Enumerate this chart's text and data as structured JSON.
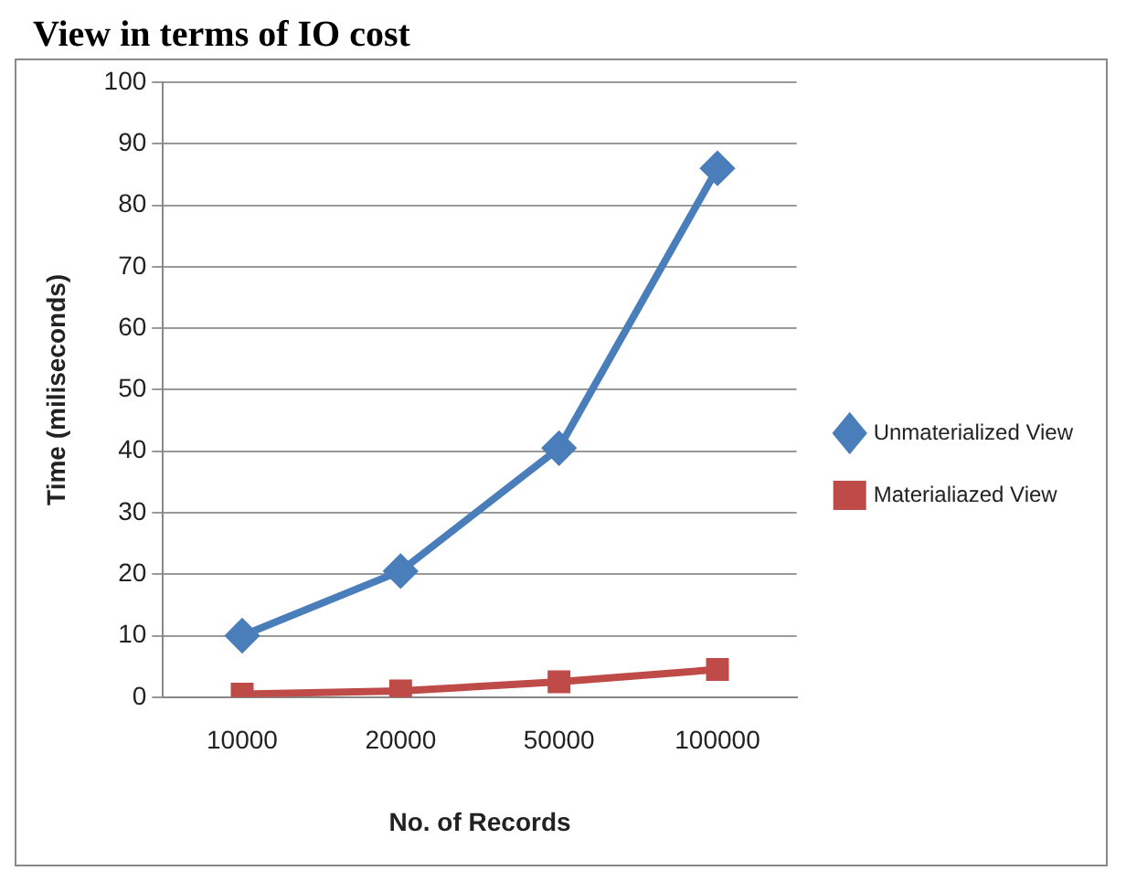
{
  "chart_data": {
    "type": "line",
    "title": "View in terms of IO cost",
    "xlabel": "No. of Records",
    "ylabel": "Time (miliseconds)",
    "categories": [
      "10000",
      "20000",
      "50000",
      "100000"
    ],
    "series": [
      {
        "name": "Unmaterialized View",
        "color": "#4a7ebb",
        "marker": "diamond",
        "values": [
          10,
          20.5,
          40.5,
          86
        ]
      },
      {
        "name": "Materialiazed View",
        "color": "#be4b48",
        "marker": "square",
        "values": [
          0.5,
          1,
          2.5,
          4.5
        ]
      }
    ],
    "ylim": [
      0,
      100
    ],
    "yticks": [
      0,
      10,
      20,
      30,
      40,
      50,
      60,
      70,
      80,
      90,
      100
    ],
    "grid": "y",
    "legend": "right"
  }
}
